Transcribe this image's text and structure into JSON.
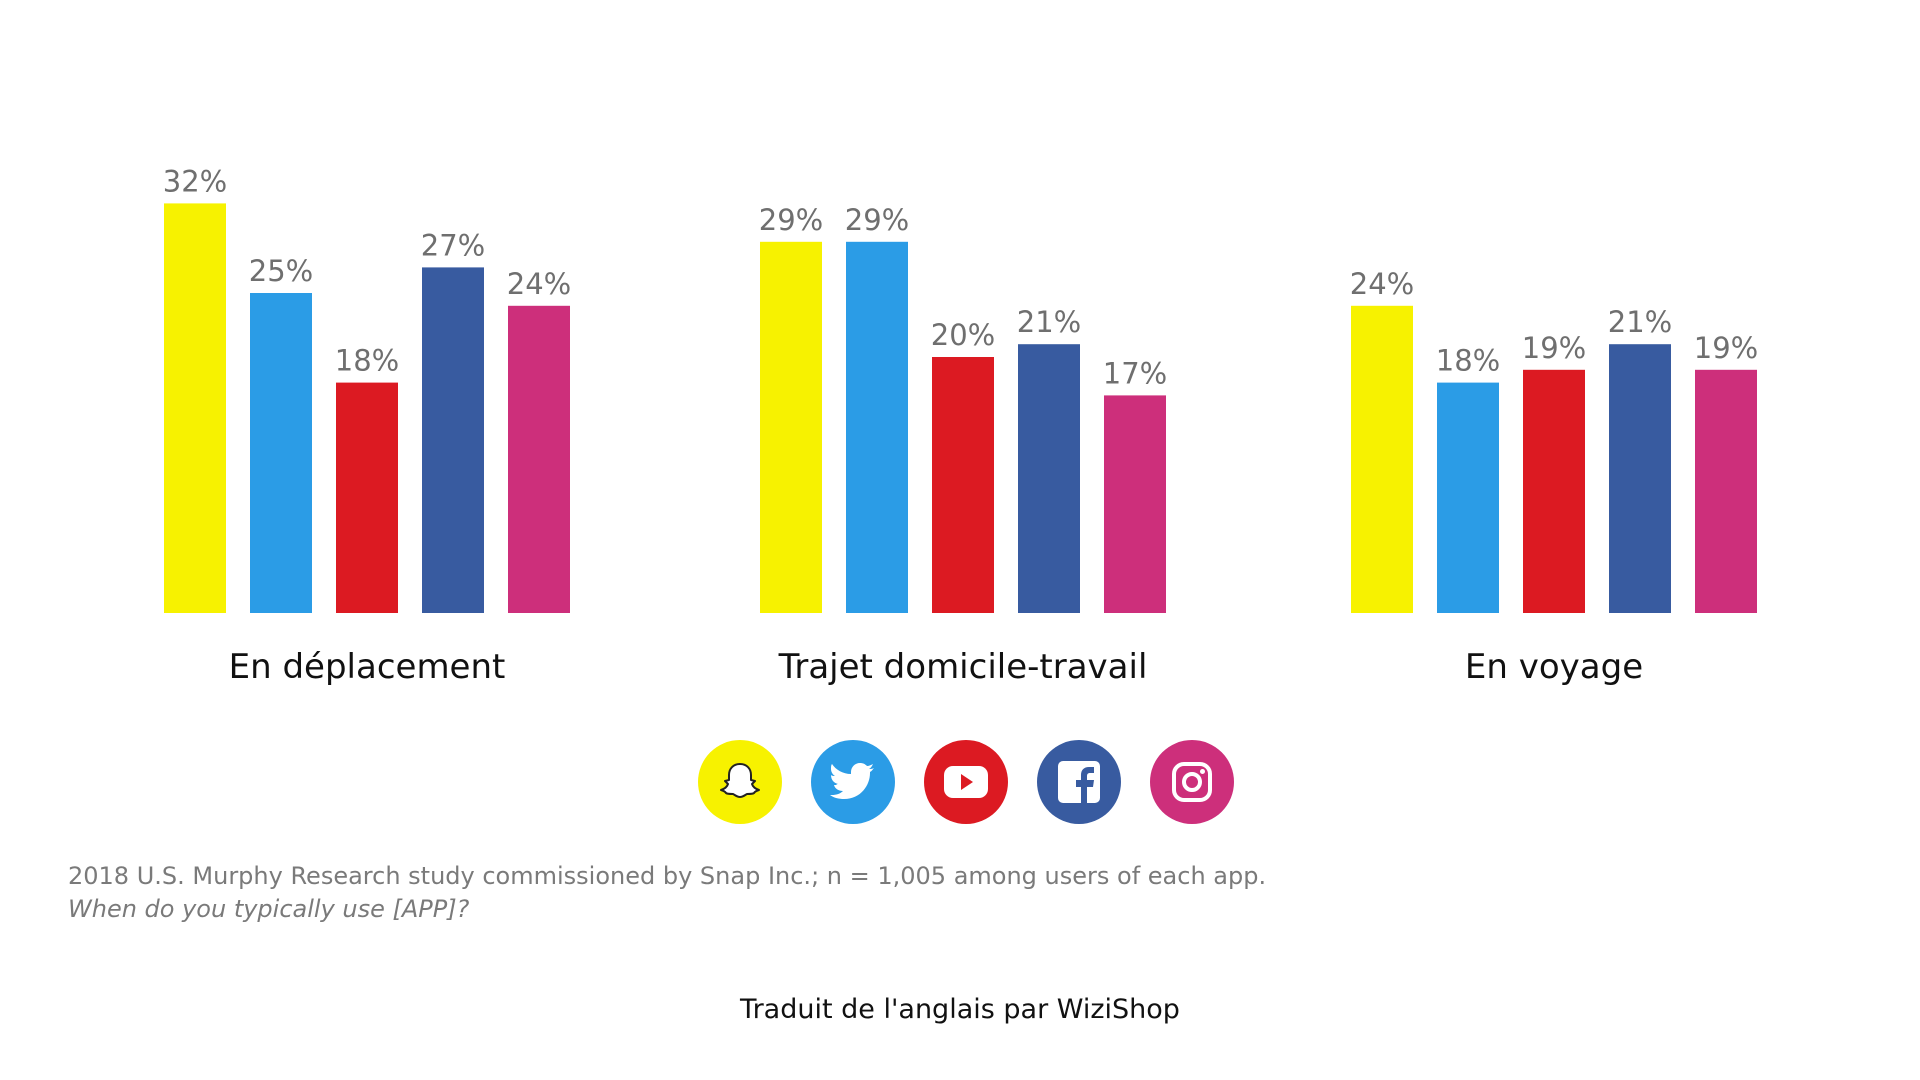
{
  "chart_data": {
    "type": "bar",
    "groups": [
      "En déplacement",
      "Trajet domicile-travail",
      "En voyage"
    ],
    "series": [
      {
        "app": "snapchat",
        "color": "#f7f200",
        "values": [
          32,
          29,
          24
        ]
      },
      {
        "app": "twitter",
        "color": "#2b9ce6",
        "values": [
          25,
          29,
          18
        ]
      },
      {
        "app": "youtube",
        "color": "#dc1a22",
        "values": [
          18,
          20,
          19
        ]
      },
      {
        "app": "facebook",
        "color": "#385ba0",
        "values": [
          27,
          21,
          21
        ]
      },
      {
        "app": "instagram",
        "color": "#cd2f7b",
        "values": [
          24,
          17,
          19
        ]
      }
    ],
    "value_suffix": "%",
    "ylim": [
      0,
      32
    ],
    "grid": false,
    "legend": "bottom-center, app icons"
  },
  "legend_icons": [
    {
      "app": "snapchat",
      "icon": "snapchat-ghost-icon",
      "color": "#f7f200"
    },
    {
      "app": "twitter",
      "icon": "twitter-bird-icon",
      "color": "#2b9ce6"
    },
    {
      "app": "youtube",
      "icon": "youtube-play-icon",
      "color": "#dc1a22"
    },
    {
      "app": "facebook",
      "icon": "facebook-f-icon",
      "color": "#385ba0"
    },
    {
      "app": "instagram",
      "icon": "instagram-camera-icon",
      "color": "#cd2f7b"
    }
  ],
  "footnote": {
    "source": "2018 U.S. Murphy Research study commissioned by Snap Inc.; n = 1,005 among users of each app.",
    "question": "When do you typically use [APP]?"
  },
  "credit": "Traduit de l'anglais par WiziShop"
}
